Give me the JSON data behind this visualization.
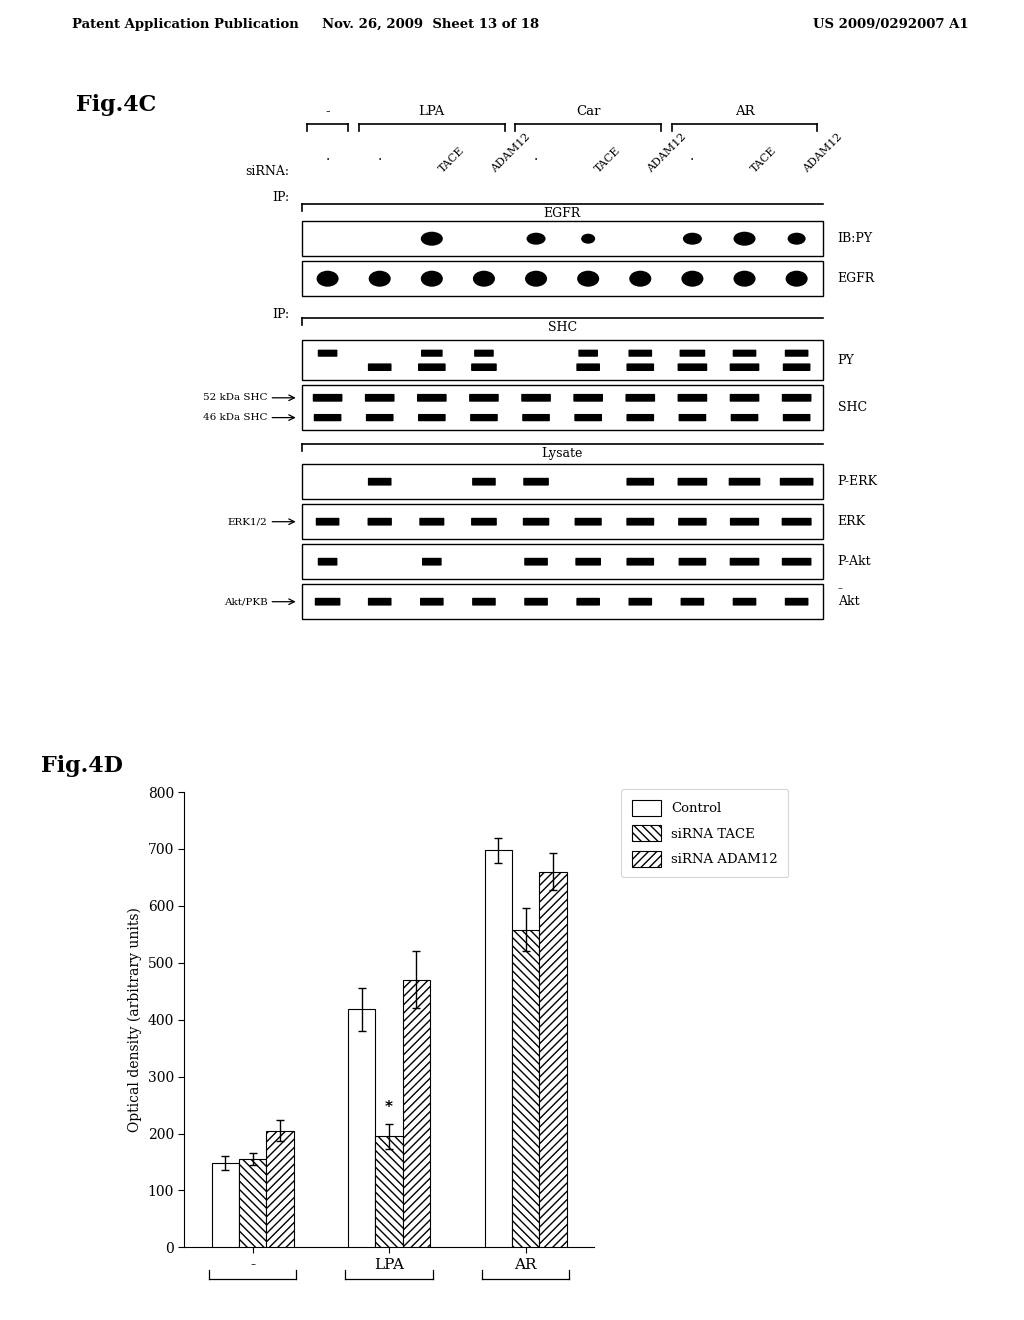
{
  "header_left": "Patent Application Publication",
  "header_mid": "Nov. 26, 2009  Sheet 13 of 18",
  "header_right": "US 2009/0292007 A1",
  "fig4c_label": "Fig.4C",
  "fig4d_label": "Fig.4D",
  "bar_groups": [
    "-",
    "LPA",
    "AR"
  ],
  "bar_values": [
    [
      148,
      155,
      205
    ],
    [
      418,
      195,
      470
    ],
    [
      698,
      558,
      660
    ]
  ],
  "bar_errors": [
    [
      12,
      10,
      18
    ],
    [
      38,
      22,
      50
    ],
    [
      22,
      38,
      32
    ]
  ],
  "legend_labels": [
    "Control",
    "siRNA TACE",
    "siRNA ADAM12"
  ],
  "ylabel": "Optical density (arbitrary units)",
  "ylim": [
    0,
    800
  ],
  "yticks": [
    0,
    100,
    200,
    300,
    400,
    500,
    600,
    700,
    800
  ]
}
